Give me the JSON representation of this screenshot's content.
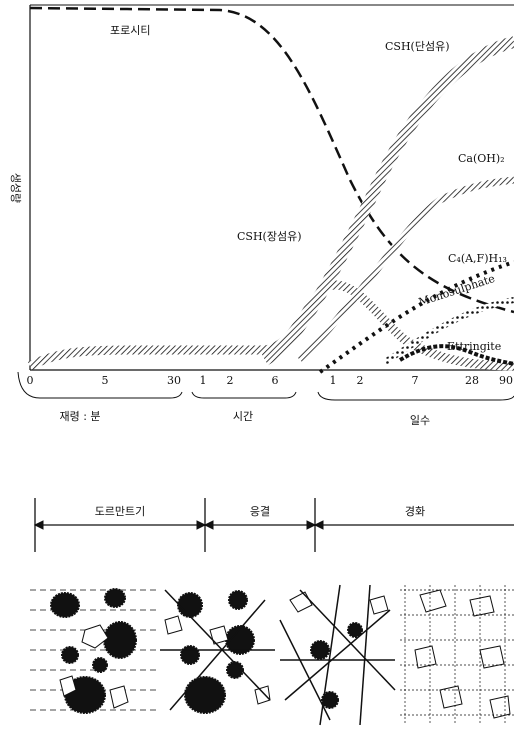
{
  "y_axis_label": "생성량",
  "curve_labels": {
    "porosity": "포로시티",
    "csh_short": "CSH(단섬유)",
    "caoh2": "Ca(OH)₂",
    "csh_long": "CSH(장섬유)",
    "c4afh13": "C₄(A,F)H₁₃",
    "monosulphate": "Monosulphate",
    "ettringite": "Ettringite"
  },
  "time_axis": {
    "minutes": {
      "label": "재령 : 분",
      "ticks": [
        0,
        5,
        30
      ]
    },
    "hours": {
      "label": "시간",
      "ticks": [
        1,
        2,
        6
      ]
    },
    "days": {
      "label": "일수",
      "ticks": [
        1,
        2,
        7,
        28,
        90
      ]
    }
  },
  "stages": [
    "도르만트기",
    "응결",
    "경화"
  ]
}
